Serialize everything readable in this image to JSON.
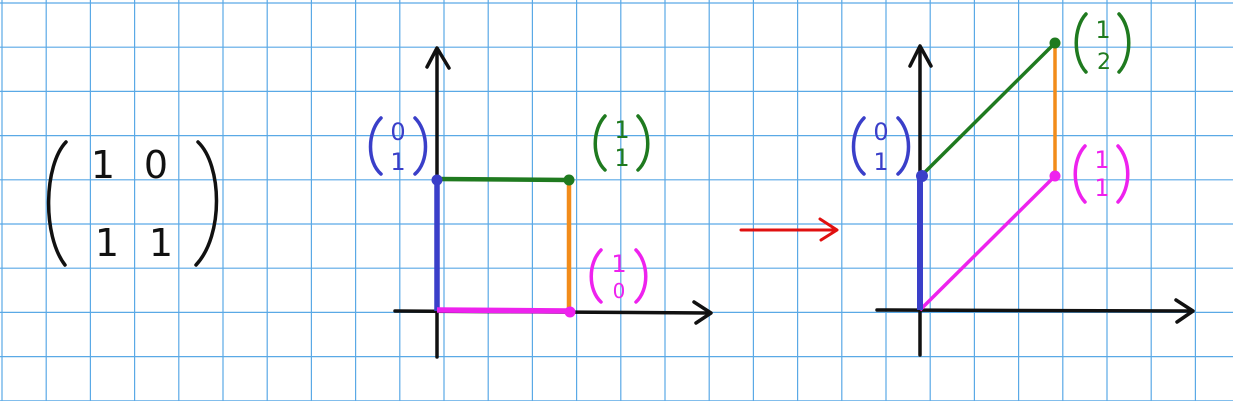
{
  "grid": {
    "color": "#5aa9e6",
    "background": "#ffffff"
  },
  "matrix": {
    "entries": [
      [
        "1",
        "0"
      ],
      [
        "1",
        "1"
      ]
    ]
  },
  "vectors": {
    "e2": [
      "0",
      "1"
    ],
    "e1_plus_e2": [
      "1",
      "1"
    ],
    "e1": [
      "1",
      "0"
    ],
    "image_e1": [
      "1",
      "1"
    ],
    "image_e1_plus_e2": [
      "1",
      "2"
    ]
  },
  "colors": {
    "ink": "#111111",
    "blue": "#3a3fc9",
    "green": "#1f7a1f",
    "orange": "#f28c1a",
    "magenta": "#ee22ee",
    "arrow": "#e01010"
  }
}
